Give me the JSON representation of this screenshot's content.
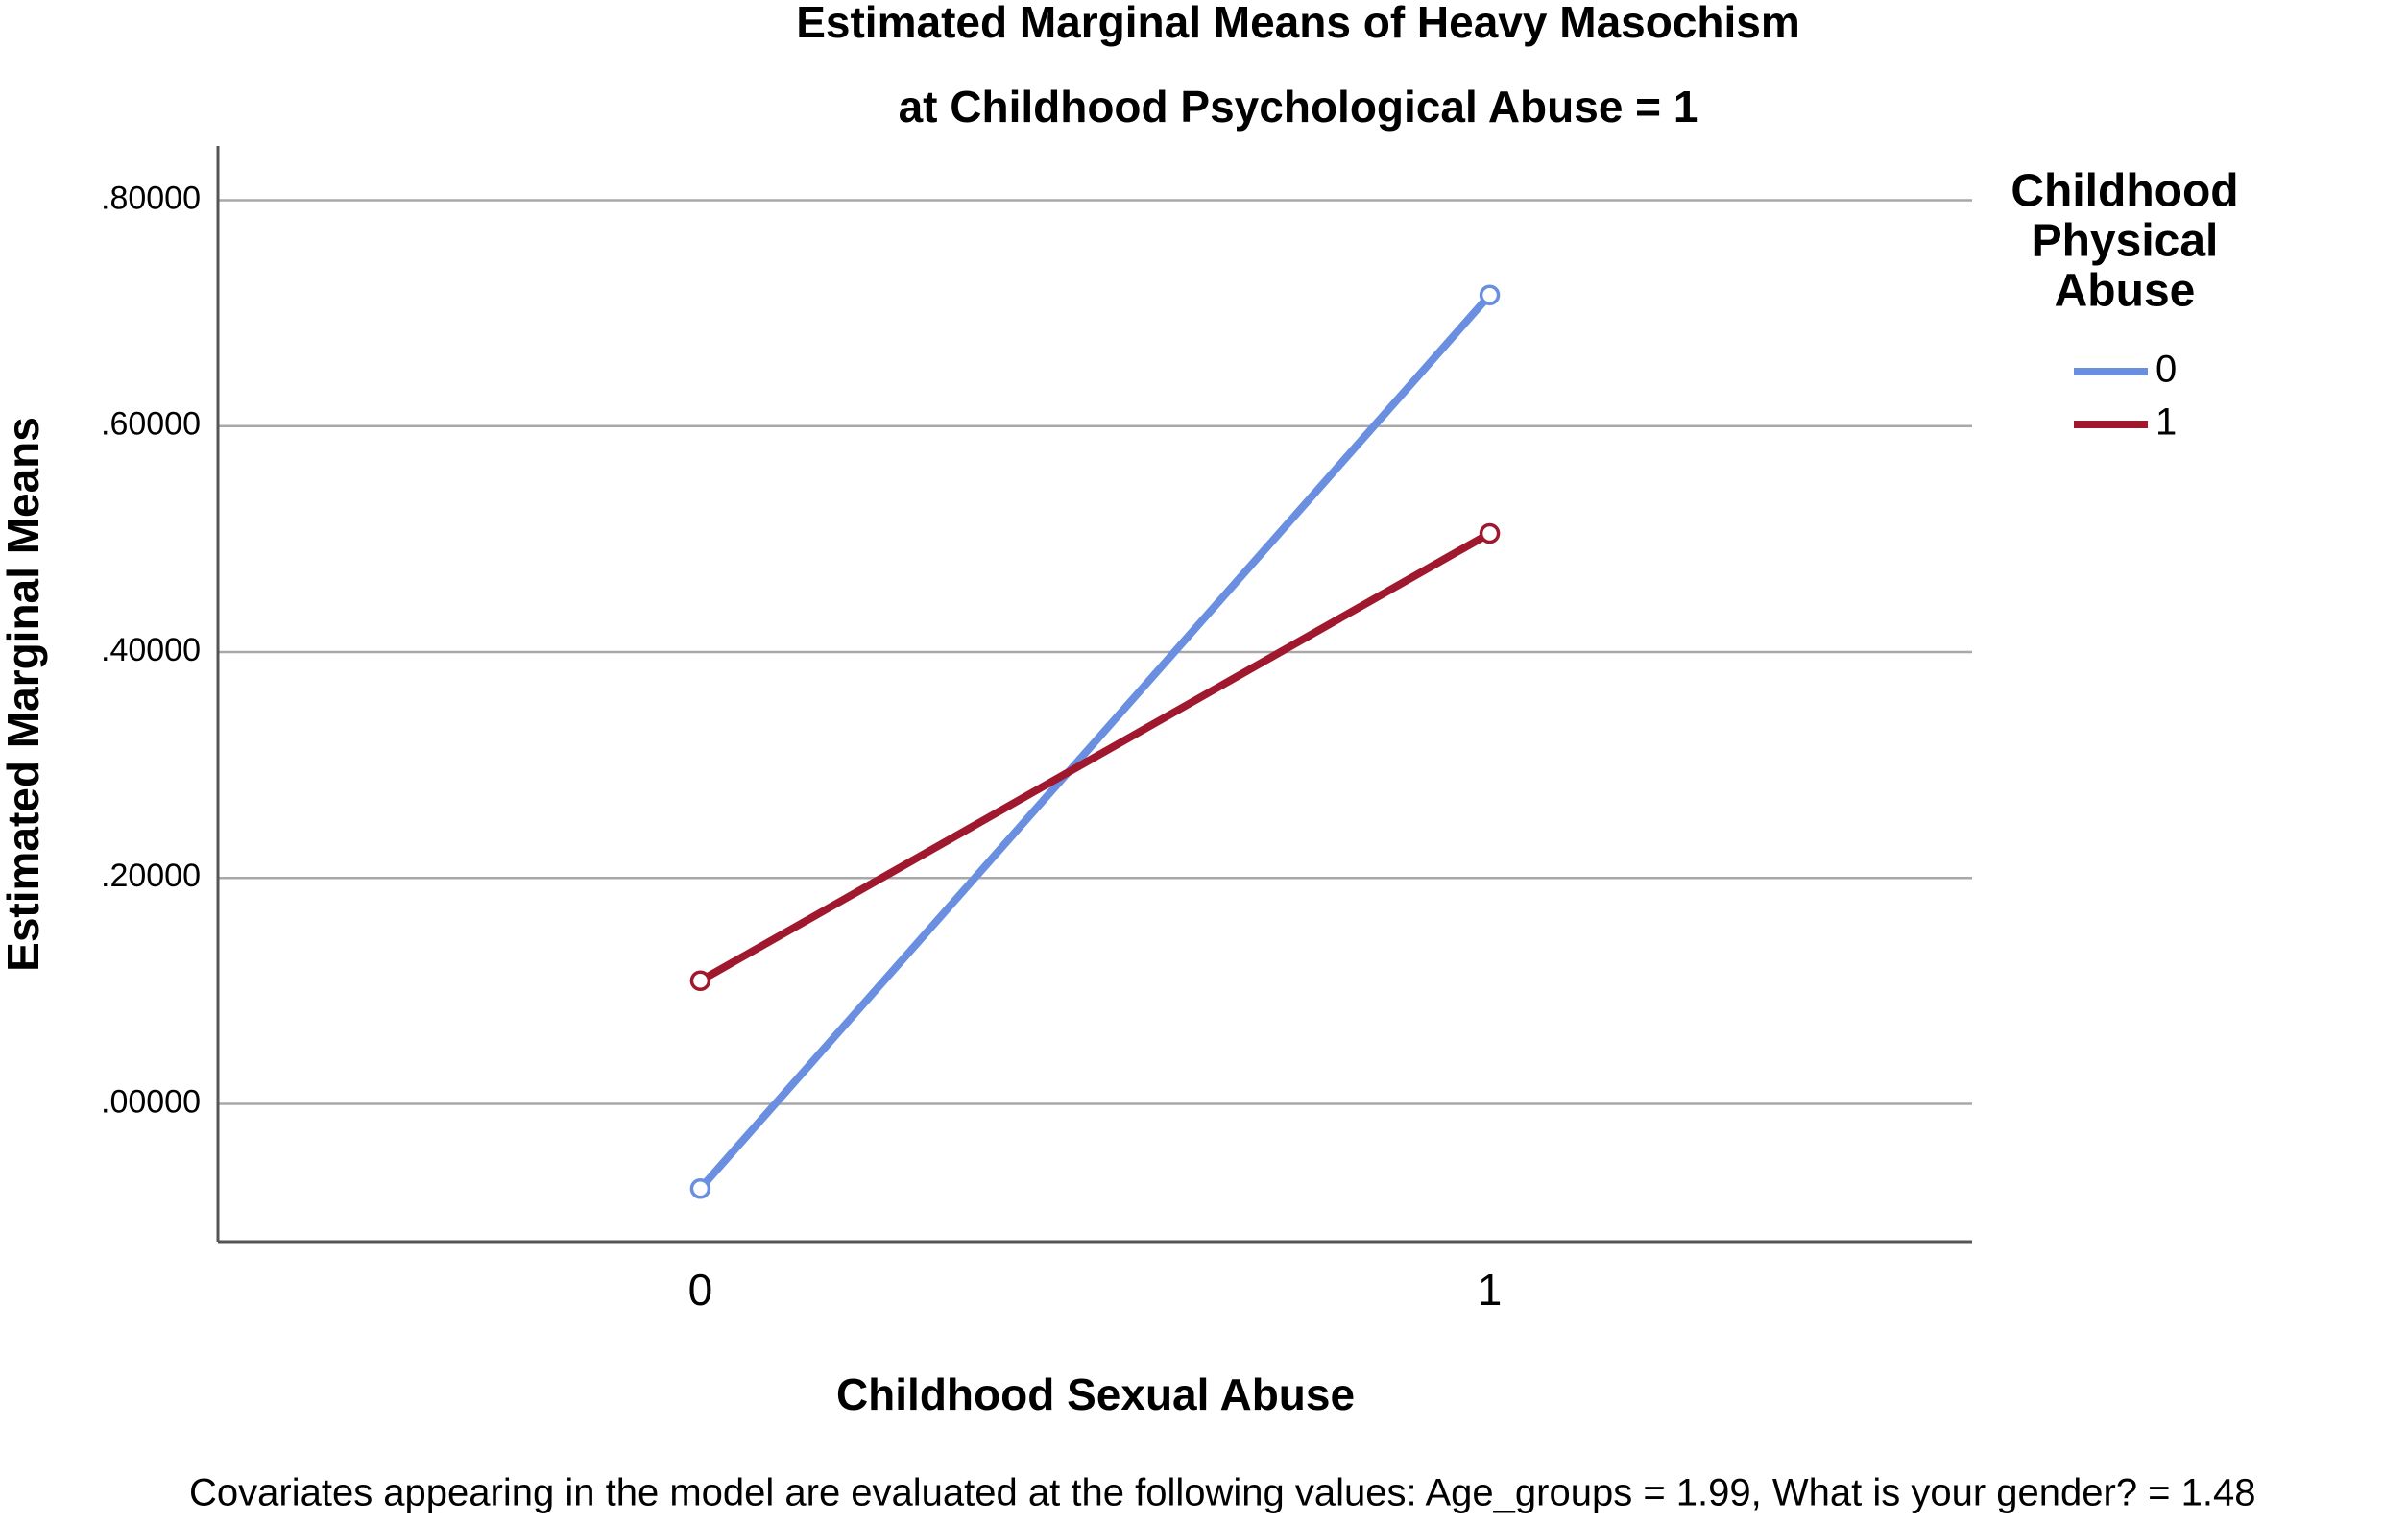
{
  "chart_data": {
    "type": "line",
    "title": "Estimated Marginal Means of Heavy Masochism",
    "subtitle": "at Childhood Psychological Abuse = 1",
    "x_label": "Childhood Sexual Abuse",
    "y_label": "Estimated Marginal Means",
    "legend_title": [
      "Childhood",
      "Physical",
      "Abuse"
    ],
    "note": "Covariates appearing in the model are evaluated at the following values: Age_groups = 1.99, What is your gender? = 1.48",
    "categories": [
      "0",
      "1"
    ],
    "series": [
      {
        "name": "0",
        "color": "#6a8fe0",
        "values": [
          -0.075,
          0.716
        ]
      },
      {
        "name": "1",
        "color": "#a0182e",
        "values": [
          0.109,
          0.505
        ]
      }
    ],
    "ylim": [
      -0.122,
      0.848
    ],
    "yticks": [
      {
        "value": 0,
        "label": ".00000"
      },
      {
        "value": 0.2,
        "label": ".20000"
      },
      {
        "value": 0.4,
        "label": ".40000"
      },
      {
        "value": 0.6,
        "label": ".60000"
      },
      {
        "value": 0.8,
        "label": ".80000"
      }
    ],
    "grid": true,
    "legend_position": "right"
  }
}
